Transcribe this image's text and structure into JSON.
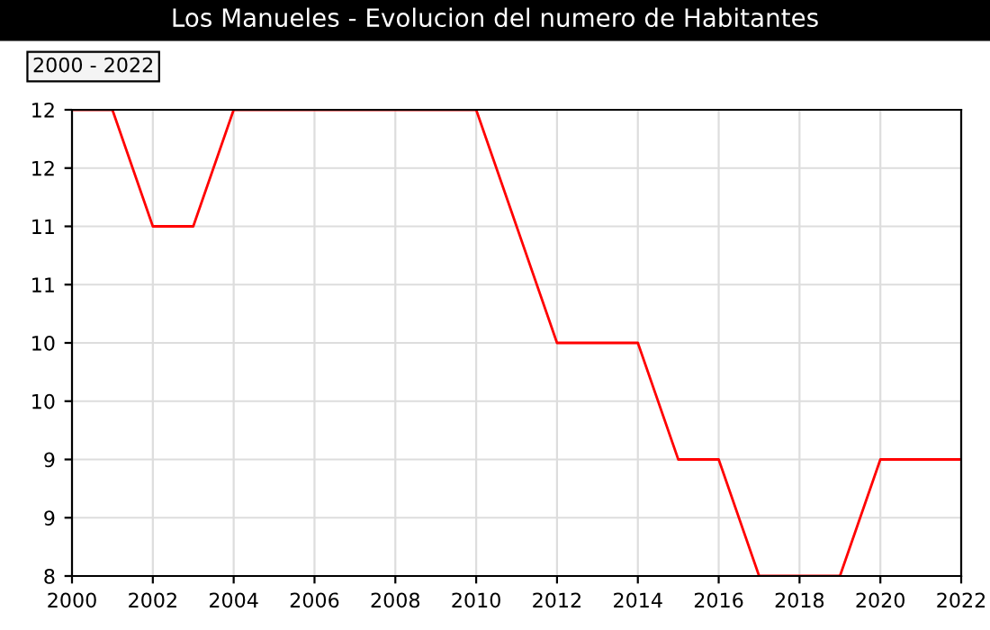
{
  "chart_data": {
    "type": "line",
    "title": "Los Manueles - Evolucion del numero de Habitantes",
    "annotations": [
      "2000 - 2022"
    ],
    "x": [
      2000,
      2001,
      2002,
      2003,
      2004,
      2005,
      2006,
      2007,
      2008,
      2009,
      2010,
      2011,
      2012,
      2013,
      2014,
      2015,
      2016,
      2017,
      2018,
      2019,
      2020,
      2021,
      2022
    ],
    "series": [
      {
        "color": "#ff0000",
        "values": [
          12,
          12,
          11,
          11,
          12,
          12,
          12,
          12,
          12,
          12,
          12,
          11,
          10,
          10,
          10,
          9,
          9,
          8,
          8,
          8,
          9,
          9,
          9
        ]
      }
    ],
    "xlim": [
      2000,
      2022
    ],
    "xticks": [
      2000,
      2002,
      2004,
      2006,
      2008,
      2010,
      2012,
      2014,
      2016,
      2018,
      2020,
      2022
    ],
    "ylim": [
      8,
      12
    ],
    "yticks": [
      8,
      {
        "value": 8.5,
        "label": "9"
      },
      9,
      {
        "value": 9.5,
        "label": "10"
      },
      10,
      {
        "value": 10.5,
        "label": "11"
      },
      11,
      {
        "value": 11.5,
        "label": "12"
      },
      12
    ],
    "grid": true,
    "legend": false,
    "marker": "none",
    "line_style": "solid"
  }
}
